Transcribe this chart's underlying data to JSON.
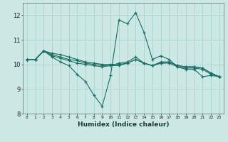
{
  "title": "",
  "xlabel": "Humidex (Indice chaleur)",
  "background_color": "#cce8e4",
  "grid_color": "#aad4ce",
  "line_color": "#1a6e64",
  "xlim": [
    -0.5,
    23.5
  ],
  "ylim": [
    8.0,
    12.5
  ],
  "yticks": [
    8,
    9,
    10,
    11,
    12
  ],
  "xticks": [
    0,
    1,
    2,
    3,
    4,
    5,
    6,
    7,
    8,
    9,
    10,
    11,
    12,
    13,
    14,
    15,
    16,
    17,
    18,
    19,
    20,
    21,
    22,
    23
  ],
  "series": [
    [
      10.2,
      10.2,
      10.55,
      10.3,
      10.1,
      9.95,
      9.6,
      9.3,
      8.75,
      8.3,
      9.55,
      11.8,
      11.65,
      12.1,
      11.3,
      10.2,
      10.35,
      10.2,
      9.9,
      9.8,
      9.8,
      9.5,
      9.55,
      9.5
    ],
    [
      10.2,
      10.2,
      10.55,
      10.35,
      10.25,
      10.15,
      10.05,
      10.0,
      9.95,
      9.9,
      9.95,
      10.05,
      10.1,
      10.3,
      10.05,
      9.95,
      10.05,
      10.05,
      9.9,
      9.85,
      9.85,
      9.8,
      9.6,
      9.5
    ],
    [
      10.2,
      10.2,
      10.55,
      10.4,
      10.3,
      10.2,
      10.15,
      10.05,
      10.0,
      9.95,
      9.95,
      9.95,
      10.05,
      10.2,
      10.05,
      9.95,
      10.05,
      10.1,
      9.95,
      9.9,
      9.9,
      9.85,
      9.65,
      9.5
    ],
    [
      10.2,
      10.2,
      10.55,
      10.45,
      10.4,
      10.3,
      10.2,
      10.1,
      10.05,
      10.0,
      10.0,
      10.0,
      10.05,
      10.2,
      10.05,
      9.95,
      10.1,
      10.1,
      9.95,
      9.9,
      9.9,
      9.85,
      9.65,
      9.5
    ]
  ]
}
